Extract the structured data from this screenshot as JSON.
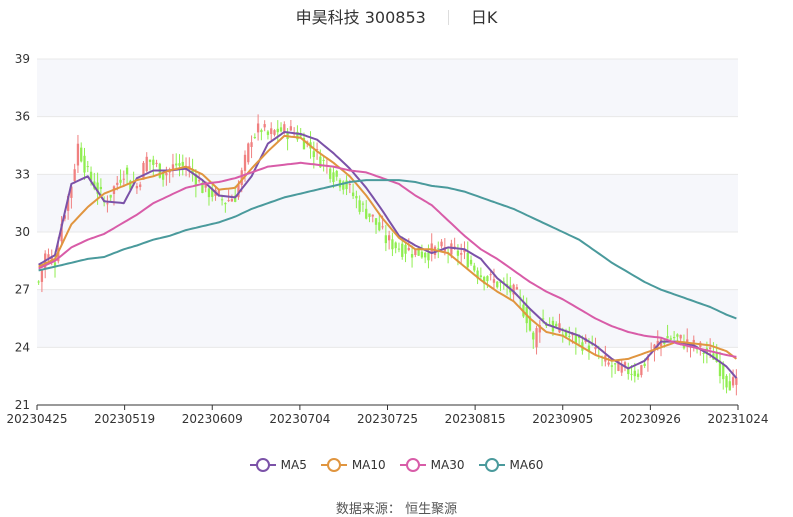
{
  "header": {
    "stock": "申昊科技 300853",
    "period": "日K"
  },
  "source": {
    "label": "数据来源：",
    "name": "恒生聚源"
  },
  "colors": {
    "up": "#f08080",
    "down": "#90ee50",
    "ma5": "#7b52a8",
    "ma10": "#e0953f",
    "ma30": "#d85ca8",
    "ma60": "#4a9a9c",
    "grid": "#e8e8e8",
    "band": "#f6f7fb",
    "axis": "#333333"
  },
  "chart_data": {
    "type": "candlestick",
    "y_ticks": [
      "21",
      "24",
      "27",
      "30",
      "33",
      "36",
      "39"
    ],
    "ylim": [
      21,
      39
    ],
    "x_tick_labels": [
      "20230425",
      "20230519",
      "20230609",
      "20230704",
      "20230725",
      "20230815",
      "20230905",
      "20230926",
      "20231024"
    ],
    "series_names": [
      "MA5",
      "MA10",
      "MA30",
      "MA60"
    ],
    "ma_series": {
      "MA5": [
        [
          0,
          28.3
        ],
        [
          5,
          28.8
        ],
        [
          10,
          32.5
        ],
        [
          15,
          32.9
        ],
        [
          20,
          31.6
        ],
        [
          26,
          31.5
        ],
        [
          30,
          32.8
        ],
        [
          35,
          33.2
        ],
        [
          40,
          33.2
        ],
        [
          45,
          33.3
        ],
        [
          50,
          32.7
        ],
        [
          55,
          31.9
        ],
        [
          60,
          31.8
        ],
        [
          65,
          32.9
        ],
        [
          70,
          34.6
        ],
        [
          75,
          35.2
        ],
        [
          80,
          35.1
        ],
        [
          85,
          34.8
        ],
        [
          90,
          34.1
        ],
        [
          95,
          33.3
        ],
        [
          100,
          32.3
        ],
        [
          105,
          31.1
        ],
        [
          110,
          29.8
        ],
        [
          115,
          29.3
        ],
        [
          120,
          28.9
        ],
        [
          125,
          29.2
        ],
        [
          130,
          29.1
        ],
        [
          135,
          28.6
        ],
        [
          140,
          27.6
        ],
        [
          145,
          26.9
        ],
        [
          150,
          26.0
        ],
        [
          155,
          25.2
        ],
        [
          160,
          24.9
        ],
        [
          165,
          24.6
        ],
        [
          170,
          24.1
        ],
        [
          175,
          23.4
        ],
        [
          180,
          22.9
        ],
        [
          185,
          23.3
        ],
        [
          190,
          24.3
        ],
        [
          195,
          24.3
        ],
        [
          200,
          24.1
        ],
        [
          205,
          23.6
        ],
        [
          210,
          23.0
        ],
        [
          213,
          22.4
        ]
      ],
      "MA10": [
        [
          0,
          28.2
        ],
        [
          5,
          28.6
        ],
        [
          10,
          30.4
        ],
        [
          15,
          31.3
        ],
        [
          20,
          32.0
        ],
        [
          26,
          32.4
        ],
        [
          30,
          32.7
        ],
        [
          35,
          32.9
        ],
        [
          40,
          33.2
        ],
        [
          45,
          33.4
        ],
        [
          50,
          33.0
        ],
        [
          55,
          32.2
        ],
        [
          60,
          32.3
        ],
        [
          65,
          33.3
        ],
        [
          70,
          34.2
        ],
        [
          75,
          35.0
        ],
        [
          80,
          34.9
        ],
        [
          85,
          34.2
        ],
        [
          90,
          33.6
        ],
        [
          95,
          32.9
        ],
        [
          100,
          31.9
        ],
        [
          105,
          30.7
        ],
        [
          110,
          29.7
        ],
        [
          115,
          29.1
        ],
        [
          120,
          29.1
        ],
        [
          125,
          28.9
        ],
        [
          130,
          28.2
        ],
        [
          135,
          27.5
        ],
        [
          140,
          26.9
        ],
        [
          145,
          26.4
        ],
        [
          150,
          25.5
        ],
        [
          155,
          24.8
        ],
        [
          160,
          24.6
        ],
        [
          165,
          24.1
        ],
        [
          170,
          23.6
        ],
        [
          175,
          23.3
        ],
        [
          180,
          23.4
        ],
        [
          185,
          23.7
        ],
        [
          190,
          24.0
        ],
        [
          195,
          24.3
        ],
        [
          200,
          24.2
        ],
        [
          205,
          24.1
        ],
        [
          210,
          23.8
        ],
        [
          213,
          23.4
        ]
      ],
      "MA30": [
        [
          0,
          28.1
        ],
        [
          5,
          28.5
        ],
        [
          10,
          29.2
        ],
        [
          15,
          29.6
        ],
        [
          20,
          29.9
        ],
        [
          26,
          30.5
        ],
        [
          30,
          30.9
        ],
        [
          35,
          31.5
        ],
        [
          40,
          31.9
        ],
        [
          45,
          32.3
        ],
        [
          50,
          32.5
        ],
        [
          55,
          32.6
        ],
        [
          60,
          32.8
        ],
        [
          65,
          33.1
        ],
        [
          70,
          33.4
        ],
        [
          75,
          33.5
        ],
        [
          80,
          33.6
        ],
        [
          85,
          33.5
        ],
        [
          90,
          33.4
        ],
        [
          95,
          33.2
        ],
        [
          100,
          33.1
        ],
        [
          105,
          32.8
        ],
        [
          110,
          32.5
        ],
        [
          115,
          31.9
        ],
        [
          120,
          31.4
        ],
        [
          125,
          30.6
        ],
        [
          130,
          29.8
        ],
        [
          135,
          29.1
        ],
        [
          140,
          28.6
        ],
        [
          145,
          28.0
        ],
        [
          150,
          27.4
        ],
        [
          155,
          26.9
        ],
        [
          160,
          26.5
        ],
        [
          165,
          26.0
        ],
        [
          170,
          25.5
        ],
        [
          175,
          25.1
        ],
        [
          180,
          24.8
        ],
        [
          185,
          24.6
        ],
        [
          190,
          24.5
        ],
        [
          195,
          24.2
        ],
        [
          200,
          24.0
        ],
        [
          205,
          23.8
        ],
        [
          210,
          23.6
        ],
        [
          213,
          23.5
        ]
      ],
      "MA60": [
        [
          0,
          28.0
        ],
        [
          5,
          28.2
        ],
        [
          10,
          28.4
        ],
        [
          15,
          28.6
        ],
        [
          20,
          28.7
        ],
        [
          26,
          29.1
        ],
        [
          30,
          29.3
        ],
        [
          35,
          29.6
        ],
        [
          40,
          29.8
        ],
        [
          45,
          30.1
        ],
        [
          50,
          30.3
        ],
        [
          55,
          30.5
        ],
        [
          60,
          30.8
        ],
        [
          65,
          31.2
        ],
        [
          70,
          31.5
        ],
        [
          75,
          31.8
        ],
        [
          80,
          32.0
        ],
        [
          85,
          32.2
        ],
        [
          90,
          32.4
        ],
        [
          95,
          32.6
        ],
        [
          100,
          32.7
        ],
        [
          105,
          32.7
        ],
        [
          110,
          32.7
        ],
        [
          115,
          32.6
        ],
        [
          120,
          32.4
        ],
        [
          125,
          32.3
        ],
        [
          130,
          32.1
        ],
        [
          135,
          31.8
        ],
        [
          140,
          31.5
        ],
        [
          145,
          31.2
        ],
        [
          150,
          30.8
        ],
        [
          155,
          30.4
        ],
        [
          160,
          30.0
        ],
        [
          165,
          29.6
        ],
        [
          170,
          29.0
        ],
        [
          175,
          28.4
        ],
        [
          180,
          27.9
        ],
        [
          185,
          27.4
        ],
        [
          190,
          27.0
        ],
        [
          195,
          26.7
        ],
        [
          200,
          26.4
        ],
        [
          205,
          26.1
        ],
        [
          210,
          25.7
        ],
        [
          213,
          25.5
        ]
      ]
    },
    "candle_anchors": [
      [
        0,
        27.4
      ],
      [
        2,
        28.8
      ],
      [
        5,
        28.5
      ],
      [
        7,
        30.5
      ],
      [
        10,
        32.5
      ],
      [
        12,
        34.5
      ],
      [
        15,
        33.0
      ],
      [
        18,
        32.2
      ],
      [
        20,
        31.5
      ],
      [
        22,
        32.0
      ],
      [
        26,
        33.2
      ],
      [
        28,
        32.5
      ],
      [
        30,
        32.4
      ],
      [
        33,
        33.8
      ],
      [
        36,
        33.4
      ],
      [
        38,
        33.0
      ],
      [
        42,
        33.5
      ],
      [
        46,
        33.3
      ],
      [
        50,
        32.3
      ],
      [
        53,
        32.0
      ],
      [
        57,
        31.6
      ],
      [
        60,
        31.9
      ],
      [
        62,
        33.0
      ],
      [
        65,
        35.0
      ],
      [
        68,
        35.4
      ],
      [
        70,
        35.0
      ],
      [
        73,
        35.3
      ],
      [
        78,
        35.2
      ],
      [
        82,
        34.6
      ],
      [
        86,
        33.8
      ],
      [
        90,
        33.0
      ],
      [
        94,
        32.4
      ],
      [
        98,
        31.4
      ],
      [
        102,
        30.7
      ],
      [
        106,
        29.6
      ],
      [
        110,
        29.2
      ],
      [
        114,
        29.0
      ],
      [
        118,
        28.9
      ],
      [
        122,
        29.1
      ],
      [
        126,
        29.0
      ],
      [
        130,
        28.8
      ],
      [
        134,
        27.9
      ],
      [
        138,
        27.5
      ],
      [
        142,
        27.2
      ],
      [
        146,
        26.7
      ],
      [
        149,
        25.6
      ],
      [
        151,
        24.2
      ],
      [
        153,
        25.5
      ],
      [
        156,
        25.2
      ],
      [
        160,
        24.7
      ],
      [
        164,
        24.4
      ],
      [
        168,
        24.1
      ],
      [
        172,
        23.3
      ],
      [
        176,
        22.9
      ],
      [
        180,
        22.8
      ],
      [
        183,
        22.7
      ],
      [
        186,
        23.5
      ],
      [
        190,
        24.4
      ],
      [
        194,
        24.5
      ],
      [
        198,
        24.2
      ],
      [
        202,
        23.9
      ],
      [
        206,
        23.6
      ],
      [
        210,
        22.3
      ],
      [
        213,
        22.0
      ]
    ]
  }
}
